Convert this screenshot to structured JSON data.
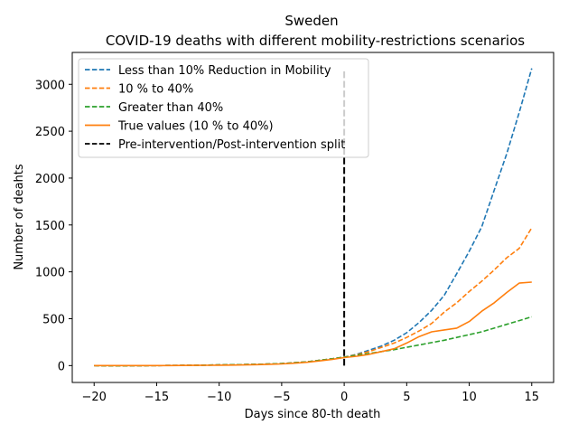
{
  "chart_data": {
    "type": "line",
    "title": "Sweden",
    "subtitle": "COVID-19 deaths with different mobility-restrictions scenarios",
    "xlabel": "Days since 80-th death",
    "ylabel": "Number of deahts",
    "xlim": [
      -21.75,
      16.75
    ],
    "ylim": [
      -180,
      3340
    ],
    "xticks": [
      -20,
      -15,
      -10,
      -5,
      0,
      5,
      10,
      15
    ],
    "xtick_labels": [
      "−20",
      "−15",
      "−10",
      "−5",
      "0",
      "5",
      "10",
      "15"
    ],
    "yticks": [
      0,
      500,
      1000,
      1500,
      2000,
      2500,
      3000
    ],
    "ytick_labels": [
      "0",
      "500",
      "1000",
      "1500",
      "2000",
      "2500",
      "3000"
    ],
    "legend_position": "top-left",
    "split_line": {
      "x": 0,
      "y_from": 0,
      "y_to": 3150,
      "name": "Pre-intervention/Post-intervention split",
      "color": "#000000"
    },
    "x": [
      -20,
      -19,
      -18,
      -17,
      -16,
      -15,
      -14,
      -13,
      -12,
      -11,
      -10,
      -9,
      -8,
      -7,
      -6,
      -5,
      -4,
      -3,
      -2,
      -1,
      0,
      1,
      2,
      3,
      4,
      5,
      6,
      7,
      8,
      9,
      10,
      11,
      12,
      13,
      14,
      15
    ],
    "series": [
      {
        "name": "Less than 10% Reduction in  Mobility",
        "color": "#1f77b4",
        "style": "dashed",
        "x_start": -20,
        "values": [
          0,
          -3,
          -3,
          -2,
          -1,
          0,
          1,
          2,
          3,
          5,
          7,
          9,
          11,
          14,
          17,
          22,
          30,
          40,
          55,
          72,
          90,
          120,
          165,
          210,
          270,
          350,
          460,
          590,
          750,
          980,
          1220,
          1480,
          1870,
          2260,
          2700,
          3170
        ]
      },
      {
        "name": "10 % to 40%",
        "color": "#ff7f0e",
        "style": "dashed",
        "x_start": -20,
        "values": [
          0,
          -3,
          -3,
          -2,
          -1,
          0,
          1,
          2,
          3,
          5,
          7,
          9,
          11,
          14,
          17,
          22,
          30,
          40,
          55,
          72,
          90,
          115,
          150,
          195,
          240,
          300,
          370,
          450,
          570,
          670,
          790,
          900,
          1020,
          1150,
          1250,
          1470
        ]
      },
      {
        "name": "Greater than 40%",
        "color": "#2ca02c",
        "style": "dashed",
        "x_start": -20,
        "values": [
          0,
          -3,
          -3,
          -2,
          -1,
          0,
          1,
          2,
          3,
          5,
          7,
          9,
          11,
          14,
          17,
          22,
          30,
          40,
          55,
          72,
          90,
          110,
          130,
          150,
          170,
          195,
          220,
          245,
          270,
          300,
          330,
          360,
          400,
          440,
          480,
          520
        ]
      },
      {
        "name": "True values (10 % to 40%)",
        "color": "#ff7f0e",
        "style": "solid",
        "x_start": -20,
        "values": [
          0,
          0,
          0,
          0,
          0,
          0,
          0,
          1,
          2,
          3,
          4,
          5,
          7,
          10,
          14,
          18,
          25,
          35,
          50,
          65,
          85,
          100,
          120,
          150,
          180,
          240,
          310,
          360,
          380,
          400,
          470,
          580,
          670,
          780,
          880,
          890
        ]
      }
    ]
  }
}
